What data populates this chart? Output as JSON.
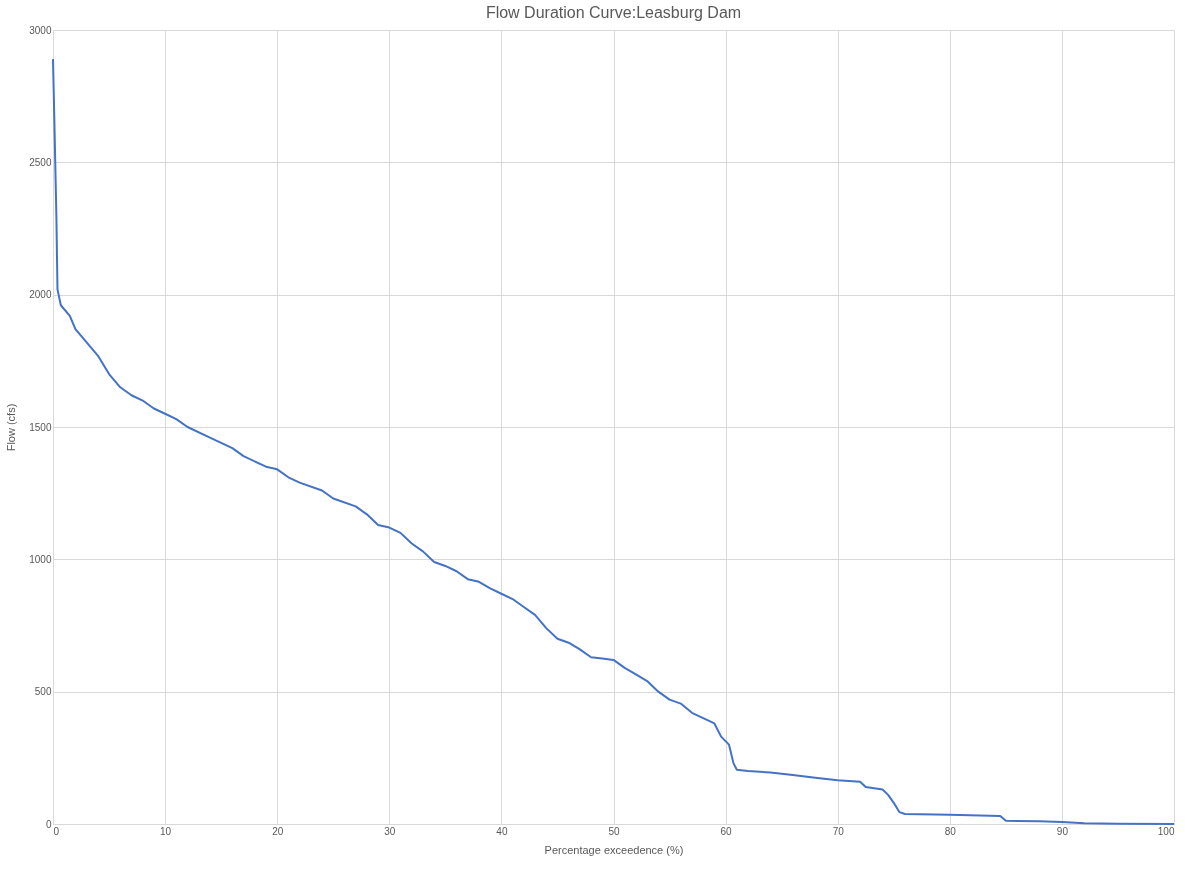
{
  "chart_data": {
    "type": "line",
    "title": "Flow Duration Curve:Leasburg  Dam",
    "xlabel": "Percentage exceedence (%)",
    "ylabel": "Flow (cfs)",
    "x": [
      0,
      0.1,
      0.2,
      0.3,
      0.4,
      0.7,
      1.5,
      2,
      3,
      4,
      5,
      6,
      7,
      8,
      9,
      10,
      11,
      12,
      14,
      16,
      17,
      19,
      20,
      21,
      22,
      24,
      25,
      27,
      28,
      29,
      30,
      31,
      32,
      33,
      34,
      35,
      36,
      37,
      38,
      39,
      40,
      41,
      42,
      43,
      44,
      45,
      46,
      47,
      48,
      49,
      50,
      51,
      52,
      53,
      54,
      55,
      56,
      57,
      58,
      59,
      59.6,
      60.3,
      60.7,
      61,
      62,
      64,
      66,
      68,
      70,
      72,
      72.5,
      74,
      74.5,
      75,
      75.5,
      76,
      80,
      84.5,
      85,
      88,
      90,
      92,
      95,
      100
    ],
    "series": [
      {
        "color": "#4472c4",
        "values": [
          2890,
          2700,
          2500,
          2300,
          2020,
          1960,
          1920,
          1870,
          1820,
          1770,
          1700,
          1650,
          1620,
          1600,
          1570,
          1550,
          1530,
          1500,
          1460,
          1420,
          1390,
          1350,
          1340,
          1310,
          1290,
          1260,
          1230,
          1200,
          1170,
          1130,
          1120,
          1100,
          1060,
          1030,
          990,
          975,
          955,
          925,
          915,
          890,
          870,
          850,
          820,
          790,
          740,
          700,
          685,
          660,
          630,
          625,
          620,
          590,
          565,
          540,
          500,
          470,
          455,
          420,
          400,
          380,
          330,
          300,
          230,
          205,
          200,
          195,
          185,
          175,
          165,
          160,
          140,
          130,
          110,
          80,
          45,
          38,
          35,
          30,
          12,
          10,
          8,
          3,
          1,
          0
        ]
      }
    ],
    "xlim": [
      0,
      100
    ],
    "xticks": [
      0,
      10,
      20,
      30,
      40,
      50,
      60,
      70,
      80,
      90,
      100
    ],
    "ylim": [
      0,
      3000
    ],
    "yticks": [
      0,
      500,
      1000,
      1500,
      2000,
      2500,
      3000
    ],
    "grid": true,
    "legend": false,
    "marker": "none",
    "line_style": "solid"
  }
}
